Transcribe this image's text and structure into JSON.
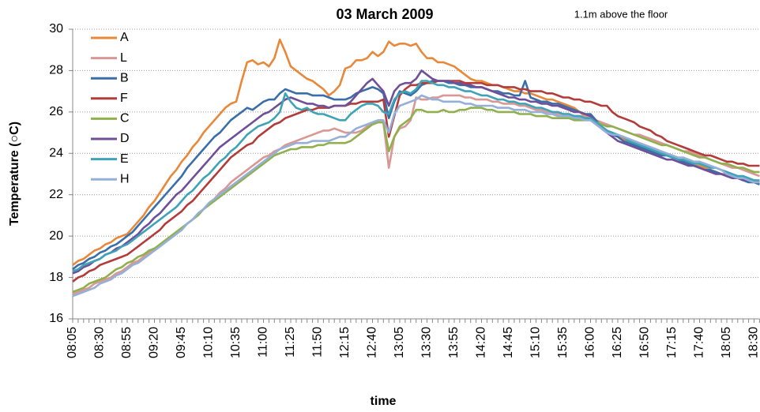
{
  "chart_data": {
    "type": "line",
    "title": "03 March 2009",
    "annotation": "1.1m above the floor",
    "x_label": "time",
    "y_label": "Temperature (○C)",
    "categories": [
      "08:05",
      null,
      null,
      null,
      null,
      "08:30",
      null,
      null,
      null,
      null,
      "08:55",
      null,
      null,
      null,
      null,
      "09:20",
      null,
      null,
      null,
      null,
      "09:45",
      null,
      null,
      null,
      null,
      "10:10",
      null,
      null,
      null,
      null,
      "10:35",
      null,
      null,
      null,
      null,
      "11:00",
      null,
      null,
      null,
      null,
      "11:25",
      null,
      null,
      null,
      null,
      "11:50",
      null,
      null,
      null,
      null,
      "12:15",
      null,
      null,
      null,
      null,
      "12:40",
      null,
      null,
      null,
      null,
      "13:05",
      null,
      null,
      null,
      null,
      "13:30",
      null,
      null,
      null,
      null,
      "13:55",
      null,
      null,
      null,
      null,
      "14:20",
      null,
      null,
      null,
      null,
      "14:45",
      null,
      null,
      null,
      null,
      "15:10",
      null,
      null,
      null,
      null,
      "15:35",
      null,
      null,
      null,
      null,
      "16:00",
      null,
      null,
      null,
      null,
      "16:25",
      null,
      null,
      null,
      null,
      "16:50",
      null,
      null,
      null,
      null,
      "17:15",
      null,
      null,
      null,
      null,
      "17:40",
      null,
      null,
      null,
      null,
      "18:05",
      null,
      null,
      null,
      null,
      "18:30",
      null
    ],
    "ylim": [
      16,
      30
    ],
    "yticks": [
      16,
      18,
      20,
      22,
      24,
      26,
      28,
      30
    ],
    "grid": true,
    "legend": "upper-left",
    "series": [
      {
        "name": "A",
        "color": "#e8883a",
        "values": [
          18.6,
          18.8,
          18.9,
          19.1,
          19.3,
          19.4,
          19.6,
          19.7,
          19.9,
          20.0,
          20.1,
          20.4,
          20.7,
          21.0,
          21.4,
          21.7,
          22.1,
          22.5,
          22.9,
          23.2,
          23.6,
          23.9,
          24.3,
          24.6,
          25.0,
          25.3,
          25.6,
          25.9,
          26.2,
          26.4,
          26.5,
          27.5,
          28.4,
          28.5,
          28.3,
          28.4,
          28.2,
          28.6,
          29.5,
          28.9,
          28.2,
          28.0,
          27.8,
          27.6,
          27.5,
          27.3,
          27.1,
          26.8,
          27.0,
          27.3,
          28.1,
          28.2,
          28.5,
          28.5,
          28.6,
          28.9,
          28.7,
          28.9,
          29.4,
          29.2,
          29.3,
          29.3,
          29.2,
          29.3,
          28.9,
          28.6,
          28.6,
          28.4,
          28.4,
          28.3,
          28.2,
          28.0,
          27.8,
          27.6,
          27.5,
          27.5,
          27.4,
          27.3,
          27.3,
          27.2,
          27.1,
          27.0,
          27.0,
          26.9,
          26.9,
          26.8,
          26.7,
          26.6,
          26.6,
          26.5,
          26.4,
          26.3,
          26.2,
          26.0,
          25.8,
          25.6,
          25.4,
          25.2,
          25.0,
          24.9,
          24.8,
          24.7,
          24.6,
          24.5,
          24.4,
          24.3,
          24.2,
          24.1,
          24.0,
          23.9,
          23.8,
          23.7,
          23.6,
          23.5,
          23.4,
          23.4,
          23.3,
          23.2,
          23.1,
          23.0,
          23.0,
          22.9,
          22.8,
          22.8,
          22.7,
          22.7,
          22.6
        ]
      },
      {
        "name": "L",
        "color": "#d99795",
        "values": [
          17.2,
          17.3,
          17.4,
          17.5,
          17.7,
          17.8,
          17.9,
          18.0,
          18.2,
          18.3,
          18.5,
          18.7,
          18.8,
          19.0,
          19.2,
          19.3,
          19.5,
          19.7,
          19.9,
          20.1,
          20.3,
          20.6,
          20.8,
          21.1,
          21.3,
          21.6,
          21.8,
          22.1,
          22.3,
          22.6,
          22.8,
          23.0,
          23.2,
          23.4,
          23.6,
          23.8,
          23.9,
          24.1,
          24.2,
          24.4,
          24.5,
          24.6,
          24.7,
          24.8,
          24.9,
          25.0,
          25.1,
          25.1,
          25.2,
          25.1,
          25.0,
          25.0,
          25.0,
          25.1,
          25.3,
          25.4,
          25.5,
          25.5,
          23.3,
          24.8,
          25.2,
          25.3,
          25.6,
          26.7,
          26.6,
          26.6,
          26.7,
          26.7,
          26.8,
          26.8,
          26.8,
          26.8,
          26.7,
          26.7,
          26.6,
          26.6,
          26.6,
          26.5,
          26.5,
          26.4,
          26.4,
          26.4,
          26.3,
          26.3,
          26.2,
          26.1,
          26.1,
          26.0,
          26.0,
          25.9,
          25.9,
          25.9,
          25.8,
          25.8,
          25.8,
          25.8,
          25.6,
          25.5,
          25.4,
          25.3,
          25.2,
          25.1,
          25.0,
          24.9,
          24.9,
          24.8,
          24.7,
          24.6,
          24.5,
          24.4,
          24.3,
          24.2,
          24.1,
          24.1,
          24.0,
          23.9,
          23.8,
          23.7,
          23.6,
          23.5,
          23.4,
          23.3,
          23.3,
          23.2,
          23.1,
          23.0,
          22.9
        ]
      },
      {
        "name": "B",
        "color": "#3a6ea8",
        "values": [
          18.4,
          18.6,
          18.7,
          18.9,
          19.0,
          19.2,
          19.3,
          19.5,
          19.6,
          19.8,
          20.0,
          20.2,
          20.5,
          20.8,
          21.1,
          21.4,
          21.7,
          22.0,
          22.3,
          22.6,
          22.9,
          23.3,
          23.6,
          23.9,
          24.2,
          24.5,
          24.8,
          25.0,
          25.3,
          25.6,
          25.8,
          26.0,
          26.2,
          26.1,
          26.3,
          26.5,
          26.6,
          26.6,
          26.9,
          27.1,
          27.0,
          26.9,
          26.9,
          26.9,
          26.8,
          26.8,
          26.8,
          26.7,
          26.6,
          26.6,
          26.6,
          26.7,
          26.9,
          27.0,
          27.1,
          27.2,
          27.1,
          26.9,
          25.7,
          26.5,
          27.0,
          26.9,
          26.8,
          27.0,
          27.3,
          27.4,
          27.5,
          27.5,
          27.5,
          27.4,
          27.4,
          27.3,
          27.3,
          27.2,
          27.2,
          27.2,
          27.1,
          27.0,
          27.0,
          26.9,
          26.9,
          26.8,
          26.8,
          27.5,
          26.7,
          26.6,
          26.5,
          26.5,
          26.4,
          26.4,
          26.3,
          26.2,
          26.1,
          26.0,
          25.9,
          25.9,
          25.6,
          25.3,
          25.1,
          24.9,
          24.8,
          24.6,
          24.5,
          24.4,
          24.3,
          24.2,
          24.1,
          24.0,
          23.9,
          23.9,
          23.8,
          23.7,
          23.6,
          23.5,
          23.4,
          23.3,
          23.2,
          23.2,
          23.1,
          23.0,
          22.9,
          22.8,
          22.8,
          22.7,
          22.6,
          22.6,
          22.5
        ]
      },
      {
        "name": "F",
        "color": "#b23c3a",
        "values": [
          17.8,
          18.0,
          18.1,
          18.3,
          18.4,
          18.6,
          18.7,
          18.8,
          18.9,
          19.0,
          19.1,
          19.3,
          19.5,
          19.7,
          19.9,
          20.1,
          20.3,
          20.6,
          20.8,
          21.0,
          21.2,
          21.5,
          21.7,
          22.0,
          22.3,
          22.6,
          22.9,
          23.2,
          23.5,
          23.8,
          24.0,
          24.2,
          24.4,
          24.5,
          24.8,
          25.0,
          25.2,
          25.4,
          25.5,
          25.7,
          25.8,
          25.9,
          26.0,
          26.1,
          26.1,
          26.2,
          26.2,
          26.2,
          26.3,
          26.3,
          26.3,
          26.4,
          26.4,
          26.5,
          26.5,
          26.5,
          26.5,
          26.6,
          24.8,
          25.8,
          26.8,
          27.1,
          27.3,
          27.3,
          27.4,
          27.4,
          27.4,
          27.5,
          27.5,
          27.5,
          27.5,
          27.5,
          27.4,
          27.4,
          27.4,
          27.4,
          27.3,
          27.3,
          27.3,
          27.2,
          27.2,
          27.2,
          27.1,
          27.1,
          27.0,
          27.0,
          27.0,
          26.9,
          26.9,
          26.8,
          26.7,
          26.7,
          26.6,
          26.6,
          26.5,
          26.5,
          26.4,
          26.3,
          26.3,
          26.0,
          25.8,
          25.7,
          25.6,
          25.5,
          25.3,
          25.2,
          25.1,
          24.9,
          24.8,
          24.6,
          24.5,
          24.4,
          24.3,
          24.2,
          24.1,
          24.0,
          23.9,
          23.9,
          23.8,
          23.7,
          23.6,
          23.6,
          23.5,
          23.5,
          23.4,
          23.4,
          23.4
        ]
      },
      {
        "name": "C",
        "color": "#8fb04c",
        "values": [
          17.3,
          17.4,
          17.5,
          17.7,
          17.8,
          17.9,
          18.0,
          18.2,
          18.4,
          18.5,
          18.7,
          18.8,
          19.0,
          19.1,
          19.3,
          19.4,
          19.6,
          19.8,
          20.0,
          20.2,
          20.4,
          20.6,
          20.8,
          21.0,
          21.3,
          21.5,
          21.7,
          21.9,
          22.1,
          22.3,
          22.5,
          22.7,
          22.9,
          23.1,
          23.3,
          23.5,
          23.7,
          23.9,
          24.0,
          24.1,
          24.2,
          24.2,
          24.3,
          24.3,
          24.3,
          24.4,
          24.4,
          24.5,
          24.5,
          24.5,
          24.5,
          24.6,
          24.8,
          25.0,
          25.2,
          25.4,
          25.5,
          25.5,
          24.1,
          24.8,
          25.3,
          25.5,
          25.7,
          26.1,
          26.1,
          26.0,
          26.0,
          26.0,
          26.1,
          26.0,
          26.0,
          26.1,
          26.1,
          26.2,
          26.2,
          26.2,
          26.1,
          26.1,
          26.0,
          26.0,
          26.0,
          26.0,
          25.9,
          25.9,
          25.9,
          25.8,
          25.8,
          25.8,
          25.7,
          25.7,
          25.7,
          25.7,
          25.6,
          25.6,
          25.6,
          25.6,
          25.5,
          25.4,
          25.3,
          25.3,
          25.2,
          25.1,
          25.0,
          24.9,
          24.8,
          24.7,
          24.6,
          24.5,
          24.4,
          24.4,
          24.3,
          24.2,
          24.1,
          24.0,
          23.9,
          23.8,
          23.8,
          23.7,
          23.6,
          23.5,
          23.5,
          23.4,
          23.3,
          23.3,
          23.2,
          23.1,
          23.1
        ]
      },
      {
        "name": "D",
        "color": "#6f4f98",
        "values": [
          18.2,
          18.3,
          18.5,
          18.6,
          18.8,
          18.9,
          19.1,
          19.2,
          19.4,
          19.5,
          19.7,
          19.9,
          20.1,
          20.4,
          20.6,
          20.9,
          21.1,
          21.4,
          21.7,
          22.0,
          22.2,
          22.5,
          22.8,
          23.1,
          23.4,
          23.7,
          24.0,
          24.3,
          24.5,
          24.7,
          24.9,
          25.1,
          25.3,
          25.5,
          25.7,
          25.9,
          26.0,
          26.2,
          26.4,
          26.6,
          26.7,
          26.6,
          26.5,
          26.4,
          26.4,
          26.3,
          26.3,
          26.2,
          26.3,
          26.3,
          26.3,
          26.5,
          26.8,
          27.1,
          27.4,
          27.6,
          27.3,
          27.0,
          26.3,
          27.0,
          27.3,
          27.4,
          27.4,
          27.6,
          28.0,
          27.8,
          27.6,
          27.5,
          27.5,
          27.5,
          27.4,
          27.4,
          27.3,
          27.3,
          27.2,
          27.2,
          27.1,
          27.0,
          26.9,
          26.8,
          26.7,
          26.7,
          26.6,
          26.6,
          26.5,
          26.5,
          26.4,
          26.4,
          26.3,
          26.3,
          26.2,
          26.1,
          26.0,
          26.0,
          25.9,
          25.8,
          25.5,
          25.2,
          25.0,
          24.8,
          24.6,
          24.5,
          24.4,
          24.3,
          24.2,
          24.1,
          24.0,
          23.9,
          23.8,
          23.7,
          23.7,
          23.6,
          23.5,
          23.4,
          23.4,
          23.3,
          23.2,
          23.1,
          23.0,
          23.0,
          22.9,
          22.8,
          22.8,
          22.7,
          22.7,
          22.6,
          22.6
        ]
      },
      {
        "name": "E",
        "color": "#3fa3b8",
        "values": [
          18.3,
          18.4,
          18.6,
          18.7,
          18.8,
          18.9,
          19.1,
          19.2,
          19.3,
          19.5,
          19.6,
          19.8,
          20.0,
          20.2,
          20.4,
          20.6,
          20.8,
          21.0,
          21.2,
          21.4,
          21.7,
          22.0,
          22.2,
          22.5,
          22.8,
          23.0,
          23.3,
          23.6,
          23.8,
          24.1,
          24.3,
          24.6,
          24.9,
          25.1,
          25.3,
          25.4,
          25.5,
          25.7,
          26.0,
          26.9,
          26.5,
          26.2,
          26.1,
          26.2,
          26.0,
          25.9,
          25.9,
          25.8,
          25.7,
          25.6,
          25.6,
          25.9,
          26.1,
          26.3,
          26.4,
          26.4,
          26.3,
          26.0,
          25.9,
          26.6,
          26.9,
          27.0,
          26.9,
          27.1,
          27.5,
          27.5,
          27.4,
          27.3,
          27.3,
          27.2,
          27.2,
          27.1,
          27.0,
          27.0,
          26.9,
          26.8,
          26.8,
          26.7,
          26.6,
          26.6,
          26.5,
          26.5,
          26.4,
          26.4,
          26.3,
          26.2,
          26.2,
          26.1,
          26.0,
          26.0,
          25.9,
          25.9,
          25.8,
          25.8,
          25.7,
          25.7,
          25.5,
          25.3,
          25.1,
          25.0,
          24.9,
          24.8,
          24.6,
          24.5,
          24.4,
          24.3,
          24.2,
          24.1,
          24.0,
          23.9,
          23.8,
          23.7,
          23.7,
          23.6,
          23.5,
          23.5,
          23.4,
          23.3,
          23.3,
          23.2,
          23.1,
          23.0,
          22.9,
          22.9,
          22.8,
          22.7,
          22.7
        ]
      },
      {
        "name": "H",
        "color": "#95b0d8",
        "values": [
          17.1,
          17.2,
          17.3,
          17.4,
          17.5,
          17.7,
          17.8,
          17.9,
          18.1,
          18.2,
          18.4,
          18.6,
          18.7,
          18.9,
          19.1,
          19.3,
          19.5,
          19.7,
          19.9,
          20.1,
          20.3,
          20.6,
          20.8,
          21.1,
          21.3,
          21.6,
          21.8,
          22.0,
          22.2,
          22.4,
          22.6,
          22.8,
          23.0,
          23.2,
          23.4,
          23.6,
          23.8,
          24.0,
          24.2,
          24.3,
          24.4,
          24.5,
          24.5,
          24.5,
          24.6,
          24.6,
          24.6,
          24.6,
          24.7,
          24.8,
          24.8,
          25.0,
          25.2,
          25.3,
          25.4,
          25.5,
          25.6,
          25.6,
          25.0,
          25.9,
          26.3,
          26.4,
          26.5,
          26.6,
          26.8,
          26.7,
          26.6,
          26.6,
          26.5,
          26.5,
          26.5,
          26.5,
          26.4,
          26.4,
          26.3,
          26.3,
          26.3,
          26.3,
          26.2,
          26.2,
          26.2,
          26.1,
          26.1,
          26.1,
          26.0,
          26.0,
          26.0,
          25.9,
          25.9,
          25.8,
          25.8,
          25.8,
          25.7,
          25.7,
          25.6,
          25.6,
          25.4,
          25.2,
          25.0,
          24.9,
          24.9,
          24.8,
          24.7,
          24.6,
          24.5,
          24.4,
          24.3,
          24.2,
          24.1,
          24.0,
          23.9,
          23.8,
          23.8,
          23.7,
          23.6,
          23.6,
          23.5,
          23.4,
          23.3,
          23.2,
          23.0,
          22.9,
          22.8,
          22.8,
          22.7,
          22.6,
          22.6
        ]
      }
    ]
  }
}
